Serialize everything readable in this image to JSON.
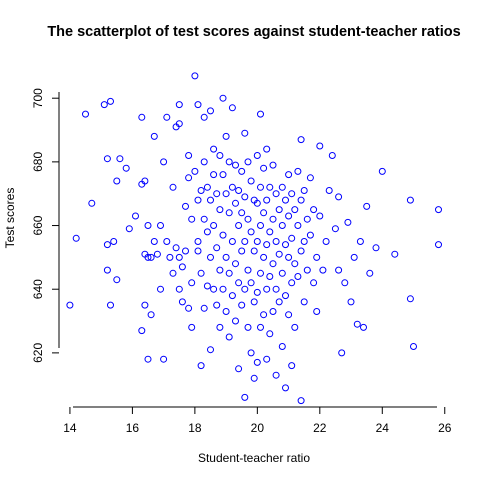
{
  "chart_data": {
    "type": "scatter",
    "title": "The scatterplot of test scores against student-teacher ratios",
    "xlabel": "Student-teacher ratio",
    "ylabel": "Test scores",
    "xlim": [
      13.65,
      26.2
    ],
    "ylim": [
      603,
      712
    ],
    "xticks": [
      14,
      16,
      18,
      20,
      22,
      24,
      26
    ],
    "yticks": [
      620,
      640,
      660,
      680,
      700
    ],
    "grid": false,
    "point_color": "#0000ff",
    "marker": "open-circle",
    "points": [
      [
        14.0,
        635
      ],
      [
        14.2,
        656
      ],
      [
        14.5,
        695
      ],
      [
        14.7,
        667
      ],
      [
        15.1,
        698
      ],
      [
        15.3,
        699
      ],
      [
        15.2,
        654
      ],
      [
        15.2,
        646
      ],
      [
        15.3,
        635
      ],
      [
        15.2,
        681
      ],
      [
        15.4,
        655
      ],
      [
        15.5,
        643
      ],
      [
        15.5,
        674
      ],
      [
        15.6,
        681
      ],
      [
        15.8,
        678
      ],
      [
        15.9,
        659
      ],
      [
        16.1,
        663
      ],
      [
        16.3,
        627
      ],
      [
        16.3,
        673
      ],
      [
        16.3,
        694
      ],
      [
        16.4,
        651
      ],
      [
        16.4,
        674
      ],
      [
        16.4,
        635
      ],
      [
        16.5,
        650
      ],
      [
        16.5,
        660
      ],
      [
        16.5,
        618
      ],
      [
        16.6,
        650
      ],
      [
        16.6,
        632
      ],
      [
        16.7,
        688
      ],
      [
        16.7,
        655
      ],
      [
        16.8,
        651
      ],
      [
        16.9,
        660
      ],
      [
        16.9,
        640
      ],
      [
        17.0,
        618
      ],
      [
        17.0,
        680
      ],
      [
        17.1,
        655
      ],
      [
        17.1,
        694
      ],
      [
        17.2,
        650
      ],
      [
        17.3,
        672
      ],
      [
        17.3,
        645
      ],
      [
        17.4,
        691
      ],
      [
        17.4,
        653
      ],
      [
        17.5,
        698
      ],
      [
        17.5,
        650
      ],
      [
        17.5,
        692
      ],
      [
        17.5,
        640
      ],
      [
        17.6,
        636
      ],
      [
        17.6,
        647
      ],
      [
        17.7,
        666
      ],
      [
        17.7,
        652
      ],
      [
        17.8,
        682
      ],
      [
        17.8,
        675
      ],
      [
        17.8,
        634
      ],
      [
        17.9,
        662
      ],
      [
        17.9,
        642
      ],
      [
        17.9,
        628
      ],
      [
        18.0,
        707
      ],
      [
        18.0,
        677
      ],
      [
        18.1,
        698
      ],
      [
        18.1,
        655
      ],
      [
        18.1,
        668
      ],
      [
        18.1,
        652
      ],
      [
        18.2,
        671
      ],
      [
        18.2,
        645
      ],
      [
        18.2,
        616
      ],
      [
        18.3,
        694
      ],
      [
        18.3,
        680
      ],
      [
        18.3,
        662
      ],
      [
        18.3,
        634
      ],
      [
        18.4,
        672
      ],
      [
        18.4,
        658
      ],
      [
        18.4,
        641
      ],
      [
        18.5,
        696
      ],
      [
        18.5,
        668
      ],
      [
        18.5,
        650
      ],
      [
        18.5,
        621
      ],
      [
        18.6,
        684
      ],
      [
        18.6,
        676
      ],
      [
        18.6,
        660
      ],
      [
        18.6,
        640
      ],
      [
        18.7,
        670
      ],
      [
        18.7,
        653
      ],
      [
        18.7,
        635
      ],
      [
        18.8,
        682
      ],
      [
        18.8,
        665
      ],
      [
        18.8,
        646
      ],
      [
        18.8,
        628
      ],
      [
        18.9,
        700
      ],
      [
        18.9,
        676
      ],
      [
        18.9,
        657
      ],
      [
        18.9,
        640
      ],
      [
        19.0,
        688
      ],
      [
        19.0,
        670
      ],
      [
        19.0,
        650
      ],
      [
        19.0,
        633
      ],
      [
        19.1,
        680
      ],
      [
        19.1,
        664
      ],
      [
        19.1,
        645
      ],
      [
        19.1,
        625
      ],
      [
        19.2,
        697
      ],
      [
        19.2,
        672
      ],
      [
        19.2,
        655
      ],
      [
        19.2,
        638
      ],
      [
        19.3,
        679
      ],
      [
        19.3,
        667
      ],
      [
        19.3,
        648
      ],
      [
        19.3,
        630
      ],
      [
        19.4,
        671
      ],
      [
        19.4,
        660
      ],
      [
        19.4,
        642
      ],
      [
        19.4,
        615
      ],
      [
        19.5,
        677
      ],
      [
        19.5,
        664
      ],
      [
        19.5,
        652
      ],
      [
        19.5,
        635
      ],
      [
        19.6,
        689
      ],
      [
        19.6,
        669
      ],
      [
        19.6,
        655
      ],
      [
        19.6,
        640
      ],
      [
        19.6,
        606
      ],
      [
        19.7,
        680
      ],
      [
        19.7,
        662
      ],
      [
        19.7,
        646
      ],
      [
        19.7,
        628
      ],
      [
        19.8,
        674
      ],
      [
        19.8,
        658
      ],
      [
        19.8,
        642
      ],
      [
        19.8,
        620
      ],
      [
        19.9,
        668
      ],
      [
        19.9,
        652
      ],
      [
        19.9,
        636
      ],
      [
        19.9,
        612
      ],
      [
        20.0,
        682
      ],
      [
        20.0,
        667
      ],
      [
        20.0,
        655
      ],
      [
        20.0,
        639
      ],
      [
        20.0,
        617
      ],
      [
        20.1,
        695
      ],
      [
        20.1,
        672
      ],
      [
        20.1,
        660
      ],
      [
        20.1,
        645
      ],
      [
        20.1,
        628
      ],
      [
        20.2,
        678
      ],
      [
        20.2,
        664
      ],
      [
        20.2,
        650
      ],
      [
        20.2,
        632
      ],
      [
        20.3,
        684
      ],
      [
        20.3,
        668
      ],
      [
        20.3,
        654
      ],
      [
        20.3,
        640
      ],
      [
        20.3,
        618
      ],
      [
        20.4,
        672
      ],
      [
        20.4,
        658
      ],
      [
        20.4,
        644
      ],
      [
        20.4,
        626
      ],
      [
        20.5,
        679
      ],
      [
        20.5,
        662
      ],
      [
        20.5,
        648
      ],
      [
        20.5,
        633
      ],
      [
        20.6,
        670
      ],
      [
        20.6,
        655
      ],
      [
        20.6,
        640
      ],
      [
        20.6,
        613
      ],
      [
        20.7,
        665
      ],
      [
        20.7,
        651
      ],
      [
        20.7,
        636
      ],
      [
        20.8,
        672
      ],
      [
        20.8,
        660
      ],
      [
        20.8,
        645
      ],
      [
        20.8,
        622
      ],
      [
        20.9,
        668
      ],
      [
        20.9,
        654
      ],
      [
        20.9,
        638
      ],
      [
        20.9,
        609
      ],
      [
        21.0,
        676
      ],
      [
        21.0,
        663
      ],
      [
        21.0,
        650
      ],
      [
        21.0,
        632
      ],
      [
        21.1,
        670
      ],
      [
        21.1,
        656
      ],
      [
        21.1,
        642
      ],
      [
        21.1,
        616
      ],
      [
        21.2,
        665
      ],
      [
        21.2,
        648
      ],
      [
        21.2,
        628
      ],
      [
        21.3,
        677
      ],
      [
        21.3,
        660
      ],
      [
        21.3,
        644
      ],
      [
        21.4,
        687
      ],
      [
        21.4,
        668
      ],
      [
        21.4,
        652
      ],
      [
        21.4,
        605
      ],
      [
        21.5,
        671
      ],
      [
        21.5,
        655
      ],
      [
        21.5,
        636
      ],
      [
        21.6,
        662
      ],
      [
        21.6,
        646
      ],
      [
        21.7,
        675
      ],
      [
        21.7,
        657
      ],
      [
        21.8,
        665
      ],
      [
        21.8,
        642
      ],
      [
        21.9,
        650
      ],
      [
        21.9,
        633
      ],
      [
        22.0,
        685
      ],
      [
        22.0,
        663
      ],
      [
        22.1,
        646
      ],
      [
        22.2,
        655
      ],
      [
        22.3,
        671
      ],
      [
        22.4,
        682
      ],
      [
        22.5,
        659
      ],
      [
        22.6,
        646
      ],
      [
        22.6,
        669
      ],
      [
        22.7,
        620
      ],
      [
        22.8,
        642
      ],
      [
        22.9,
        661
      ],
      [
        23.0,
        636
      ],
      [
        23.1,
        650
      ],
      [
        23.2,
        629
      ],
      [
        23.3,
        655
      ],
      [
        23.4,
        628
      ],
      [
        23.5,
        666
      ],
      [
        23.6,
        645
      ],
      [
        23.8,
        653
      ],
      [
        24.0,
        677
      ],
      [
        24.4,
        651
      ],
      [
        24.9,
        668
      ],
      [
        24.9,
        637
      ],
      [
        25.0,
        622
      ],
      [
        25.8,
        665
      ],
      [
        25.8,
        654
      ]
    ]
  }
}
